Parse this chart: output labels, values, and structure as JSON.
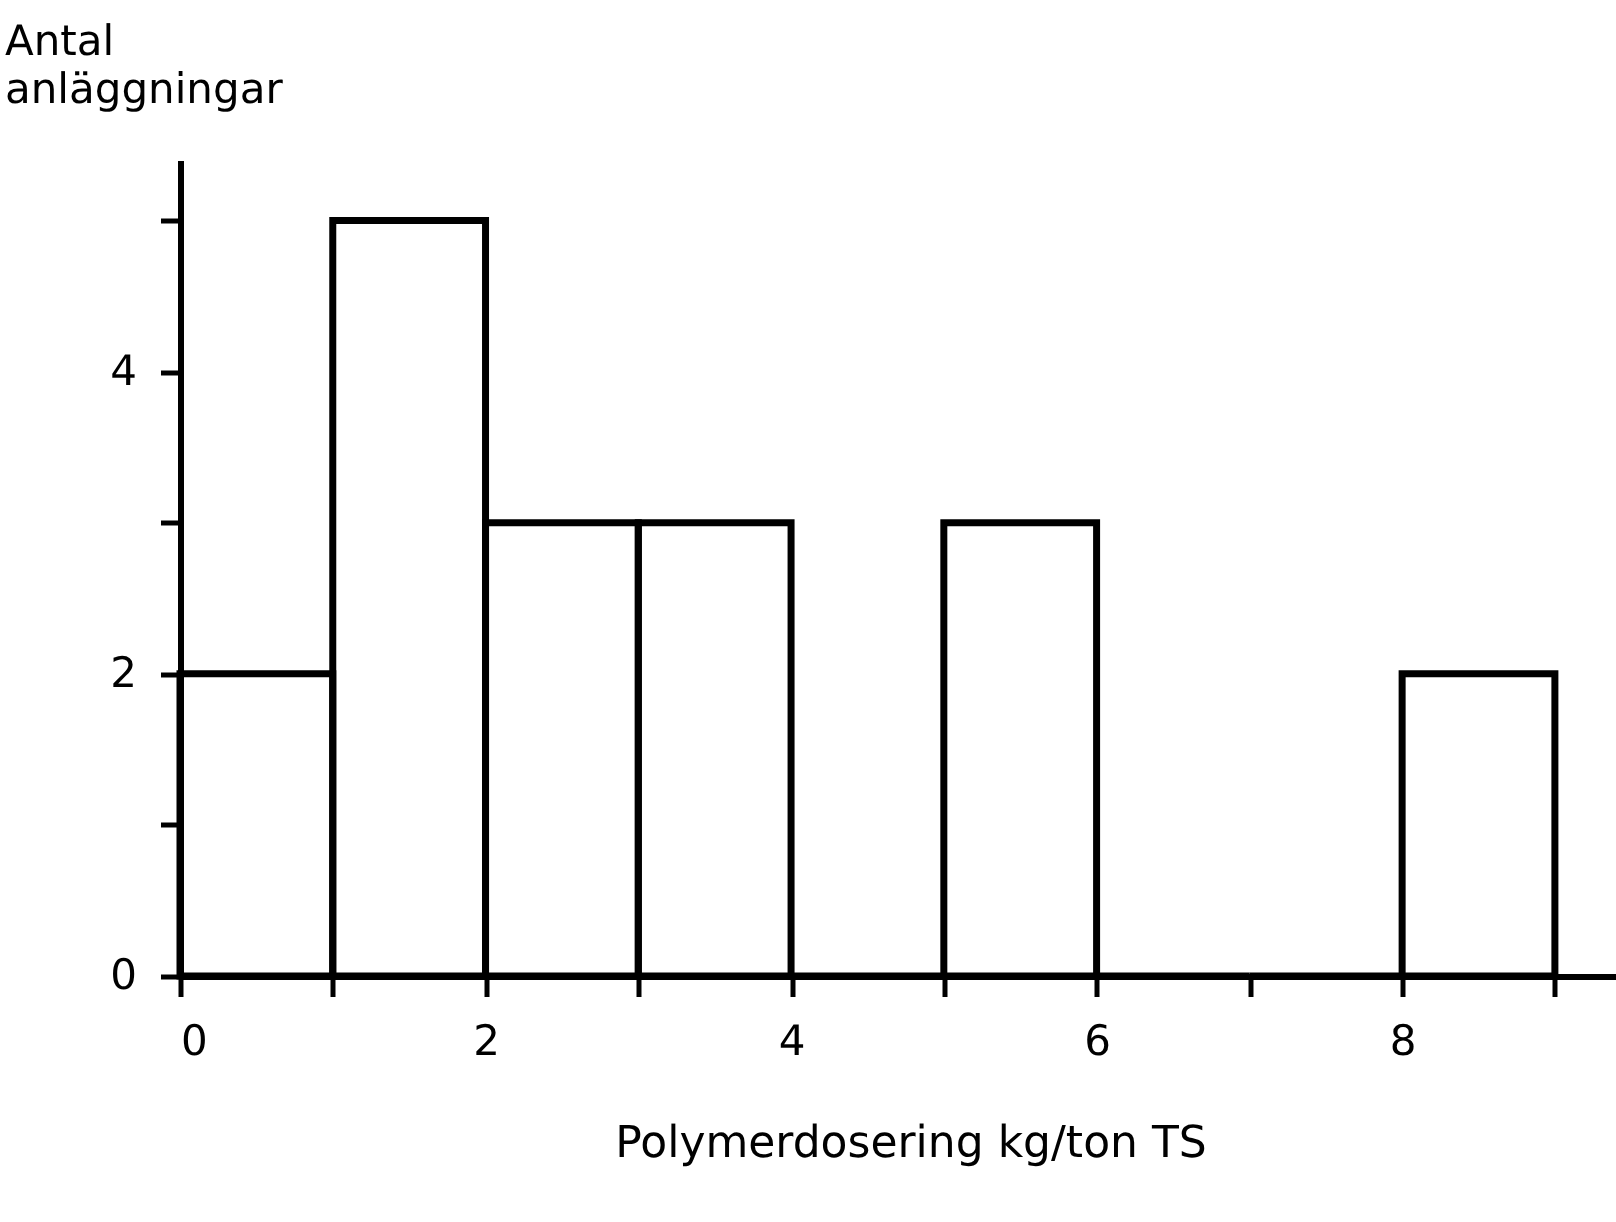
{
  "chart_data": {
    "type": "histogram",
    "xlabel": "Polymerdosering  kg/ton TS",
    "ylabel": "Antal\nanläggningar",
    "bins": [
      0,
      1,
      2,
      3,
      4,
      5,
      6,
      7,
      8,
      9
    ],
    "values": [
      2,
      5,
      3,
      3,
      0,
      3,
      0,
      0,
      2
    ],
    "color": "#000000",
    "xlim": [
      0,
      9.4
    ],
    "ylim": [
      0,
      5.4
    ],
    "xticks": [
      0,
      {
        "value": 1,
        "label": null
      },
      2,
      {
        "value": 3,
        "label": null
      },
      4,
      {
        "value": 5,
        "label": null
      },
      6,
      {
        "value": 7,
        "label": null
      },
      8,
      {
        "value": 9,
        "label": null
      }
    ],
    "yticks": [
      0,
      {
        "value": 1,
        "label": null
      },
      2,
      {
        "value": 3,
        "label": null
      },
      4,
      {
        "value": 5,
        "label": null
      }
    ],
    "grid": false
  }
}
